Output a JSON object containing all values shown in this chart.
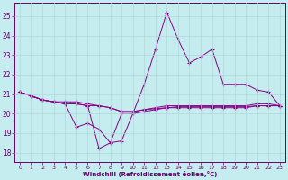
{
  "xlabel": "Windchill (Refroidissement éolien,°C)",
  "background_color": "#c5ecee",
  "grid_color": "#b0d8dc",
  "line_color": "#880088",
  "ylim": [
    17.5,
    25.7
  ],
  "xlim": [
    -0.5,
    23.5
  ],
  "yticks": [
    18,
    19,
    20,
    21,
    22,
    23,
    24,
    25
  ],
  "xticks": [
    0,
    1,
    2,
    3,
    4,
    5,
    6,
    7,
    8,
    9,
    10,
    11,
    12,
    13,
    14,
    15,
    16,
    17,
    18,
    19,
    20,
    21,
    22,
    23
  ],
  "series": [
    [
      21.1,
      20.9,
      20.7,
      20.6,
      20.5,
      20.5,
      20.4,
      18.2,
      18.5,
      18.6,
      20.0,
      21.5,
      23.3,
      25.2,
      23.8,
      22.6,
      22.9,
      23.3,
      21.5,
      21.5,
      21.5,
      21.2,
      21.1,
      20.4
    ],
    [
      21.1,
      20.9,
      20.7,
      20.6,
      20.5,
      19.3,
      19.5,
      19.2,
      18.5,
      20.0,
      20.0,
      20.1,
      20.2,
      20.3,
      20.3,
      20.3,
      20.3,
      20.3,
      20.3,
      20.3,
      20.3,
      20.4,
      20.4,
      20.4
    ],
    [
      21.1,
      20.9,
      20.7,
      20.6,
      20.6,
      20.6,
      20.5,
      20.4,
      20.3,
      20.1,
      20.1,
      20.2,
      20.3,
      20.4,
      20.4,
      20.4,
      20.4,
      20.4,
      20.4,
      20.4,
      20.4,
      20.5,
      20.5,
      20.4
    ],
    [
      21.1,
      20.9,
      20.7,
      20.6,
      20.5,
      20.5,
      20.4,
      20.4,
      20.3,
      20.1,
      20.1,
      20.2,
      20.25,
      20.3,
      20.35,
      20.35,
      20.35,
      20.35,
      20.35,
      20.35,
      20.35,
      20.4,
      20.4,
      20.4
    ]
  ]
}
